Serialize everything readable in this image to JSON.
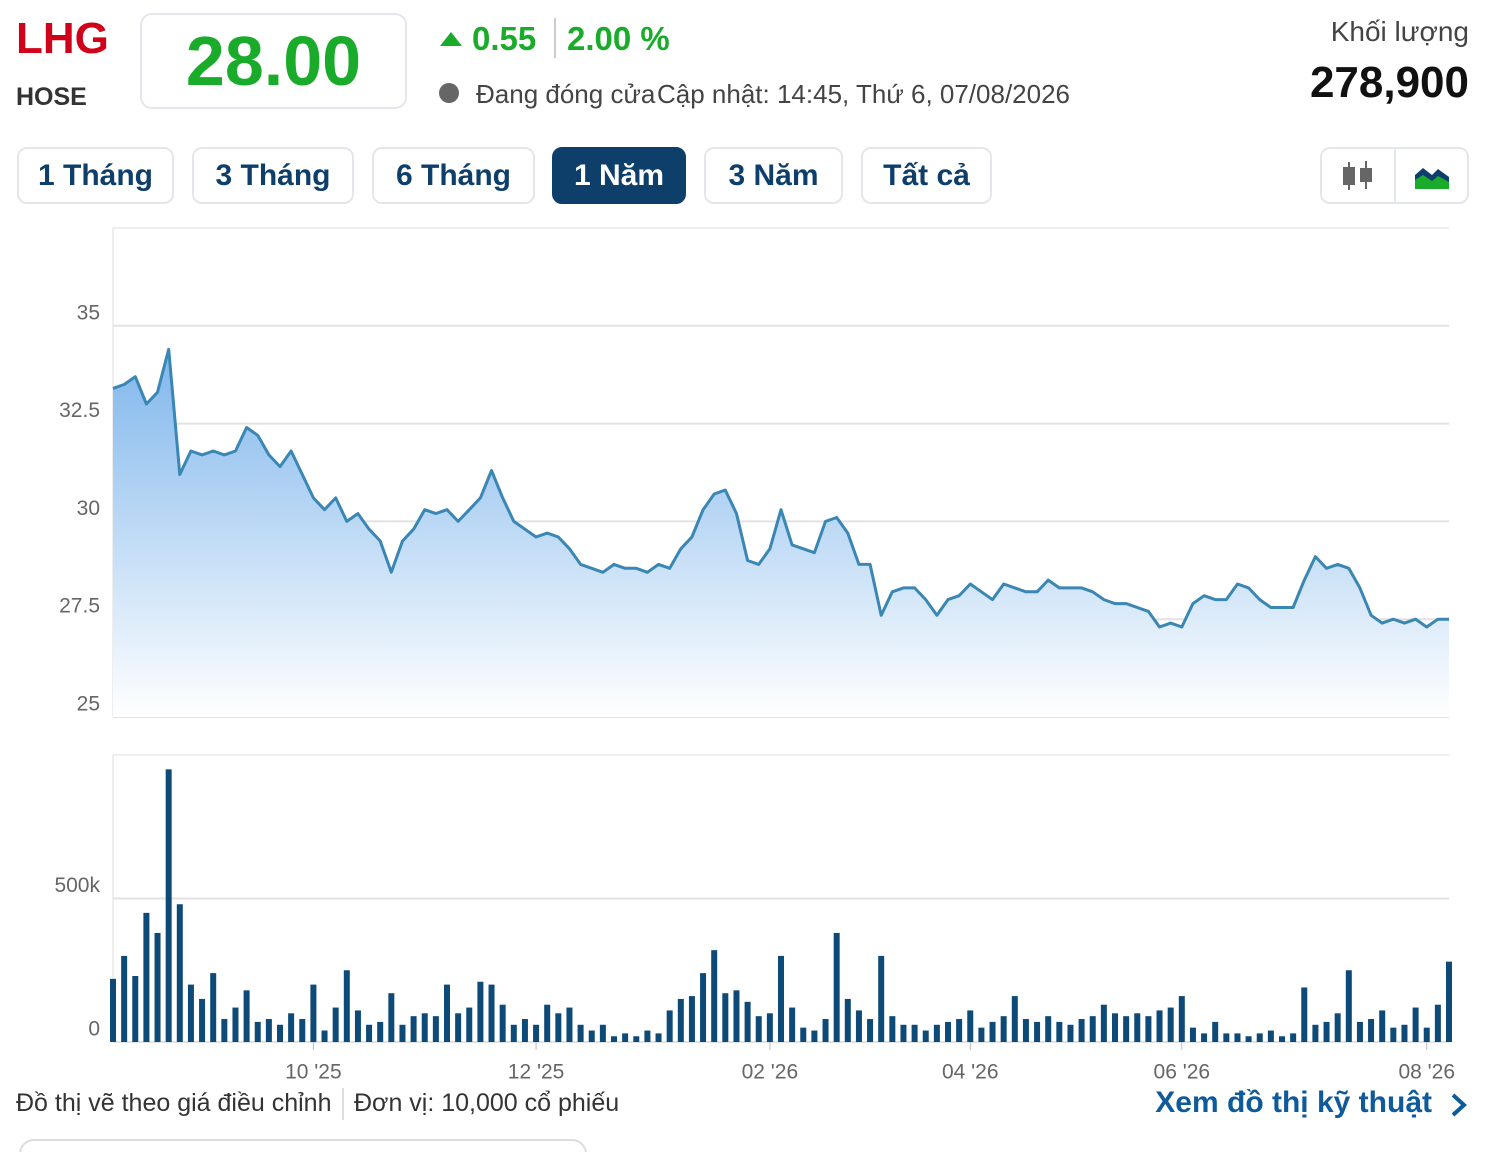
{
  "header": {
    "symbol": "LHG",
    "exchange": "HOSE",
    "price": "28.00",
    "change": "0.55",
    "change_pct": "2.00 %",
    "status": "Đang đóng cửa",
    "updated": "Cập nhật: 14:45, Thứ 6, 07/08/2026",
    "volume_label": "Khối lượng",
    "volume": "278,900"
  },
  "tabs": {
    "items": [
      "1 Tháng",
      "3 Tháng",
      "6 Tháng",
      "1 Năm",
      "3 Năm",
      "Tất cả"
    ],
    "active": 3
  },
  "footer": {
    "note": "Đồ thị vẽ theo giá điều chỉnh",
    "unit": "Đơn vị: 10,000 cổ phiếu",
    "link": "Xem đồ thị kỹ thuật"
  },
  "chart_data": [
    {
      "type": "area",
      "color": "#3a86b4",
      "grid": true,
      "ylim": [
        25,
        37.5
      ],
      "yticks": [
        25,
        27.5,
        30,
        32.5,
        35
      ],
      "values": [
        33.4,
        33.5,
        33.7,
        33.0,
        33.3,
        34.4,
        31.2,
        31.8,
        31.7,
        31.8,
        31.7,
        31.8,
        32.4,
        32.2,
        31.7,
        31.4,
        31.8,
        31.2,
        30.6,
        30.3,
        30.6,
        30.0,
        30.2,
        29.8,
        29.5,
        28.7,
        29.5,
        29.8,
        30.3,
        30.2,
        30.3,
        30.0,
        30.3,
        30.6,
        31.3,
        30.6,
        30.0,
        29.8,
        29.6,
        29.7,
        29.6,
        29.3,
        28.9,
        28.8,
        28.7,
        28.9,
        28.8,
        28.8,
        28.7,
        28.9,
        28.8,
        29.3,
        29.6,
        30.3,
        30.7,
        30.8,
        30.2,
        29.0,
        28.9,
        29.3,
        30.3,
        29.4,
        29.3,
        29.2,
        30.0,
        30.1,
        29.7,
        28.9,
        28.9,
        27.6,
        28.2,
        28.3,
        28.3,
        28.0,
        27.6,
        28.0,
        28.1,
        28.4,
        28.2,
        28.0,
        28.4,
        28.3,
        28.2,
        28.2,
        28.5,
        28.3,
        28.3,
        28.3,
        28.2,
        28.0,
        27.9,
        27.9,
        27.8,
        27.7,
        27.3,
        27.4,
        27.3,
        27.9,
        28.1,
        28.0,
        28.0,
        28.4,
        28.3,
        28.0,
        27.8,
        27.8,
        27.8,
        28.5,
        29.1,
        28.8,
        28.9,
        28.8,
        28.3,
        27.6,
        27.4,
        27.5,
        27.4,
        27.5,
        27.3,
        27.5,
        27.5
      ]
    },
    {
      "type": "bar",
      "color": "#0d4a78",
      "grid": true,
      "ylim": [
        0,
        1000000
      ],
      "yticks": [
        0,
        {
          "value": 500000,
          "label": "500k"
        }
      ],
      "categories": [
        null,
        null,
        null,
        null,
        null,
        null,
        null,
        null,
        null,
        null,
        null,
        null,
        null,
        null,
        null,
        null,
        null,
        null,
        "10 '25",
        null,
        null,
        null,
        null,
        null,
        null,
        null,
        null,
        null,
        null,
        null,
        null,
        null,
        null,
        null,
        null,
        null,
        null,
        null,
        "12 '25",
        null,
        null,
        null,
        null,
        null,
        null,
        null,
        null,
        null,
        null,
        null,
        null,
        null,
        null,
        null,
        null,
        null,
        null,
        null,
        null,
        "02 '26",
        null,
        null,
        null,
        null,
        null,
        null,
        null,
        null,
        null,
        null,
        null,
        null,
        null,
        null,
        null,
        null,
        null,
        "04 '26",
        null,
        null,
        null,
        null,
        null,
        null,
        null,
        null,
        null,
        null,
        null,
        null,
        null,
        null,
        null,
        null,
        null,
        null,
        "06 '26",
        null,
        null,
        null,
        null,
        null,
        null,
        null,
        null,
        null,
        null,
        null,
        null,
        null,
        null,
        null,
        null,
        null,
        null,
        null,
        null,
        null,
        "08 '26",
        null,
        null
      ],
      "values": [
        220000,
        300000,
        230000,
        450000,
        380000,
        950000,
        480000,
        200000,
        150000,
        240000,
        80000,
        120000,
        180000,
        70000,
        80000,
        60000,
        100000,
        80000,
        200000,
        40000,
        120000,
        250000,
        110000,
        60000,
        70000,
        170000,
        60000,
        90000,
        100000,
        90000,
        200000,
        100000,
        120000,
        210000,
        200000,
        130000,
        60000,
        80000,
        60000,
        130000,
        100000,
        120000,
        60000,
        40000,
        60000,
        20000,
        30000,
        20000,
        40000,
        30000,
        110000,
        150000,
        160000,
        240000,
        320000,
        170000,
        180000,
        140000,
        90000,
        100000,
        300000,
        120000,
        50000,
        40000,
        80000,
        380000,
        150000,
        110000,
        80000,
        300000,
        90000,
        60000,
        60000,
        40000,
        60000,
        70000,
        80000,
        110000,
        50000,
        70000,
        90000,
        160000,
        80000,
        70000,
        90000,
        70000,
        60000,
        80000,
        90000,
        130000,
        100000,
        90000,
        100000,
        90000,
        110000,
        120000,
        160000,
        50000,
        30000,
        70000,
        30000,
        30000,
        20000,
        30000,
        40000,
        20000,
        30000,
        190000,
        60000,
        70000,
        100000,
        250000,
        70000,
        80000,
        110000,
        50000,
        60000,
        120000,
        50000,
        130000,
        280000
      ]
    }
  ]
}
